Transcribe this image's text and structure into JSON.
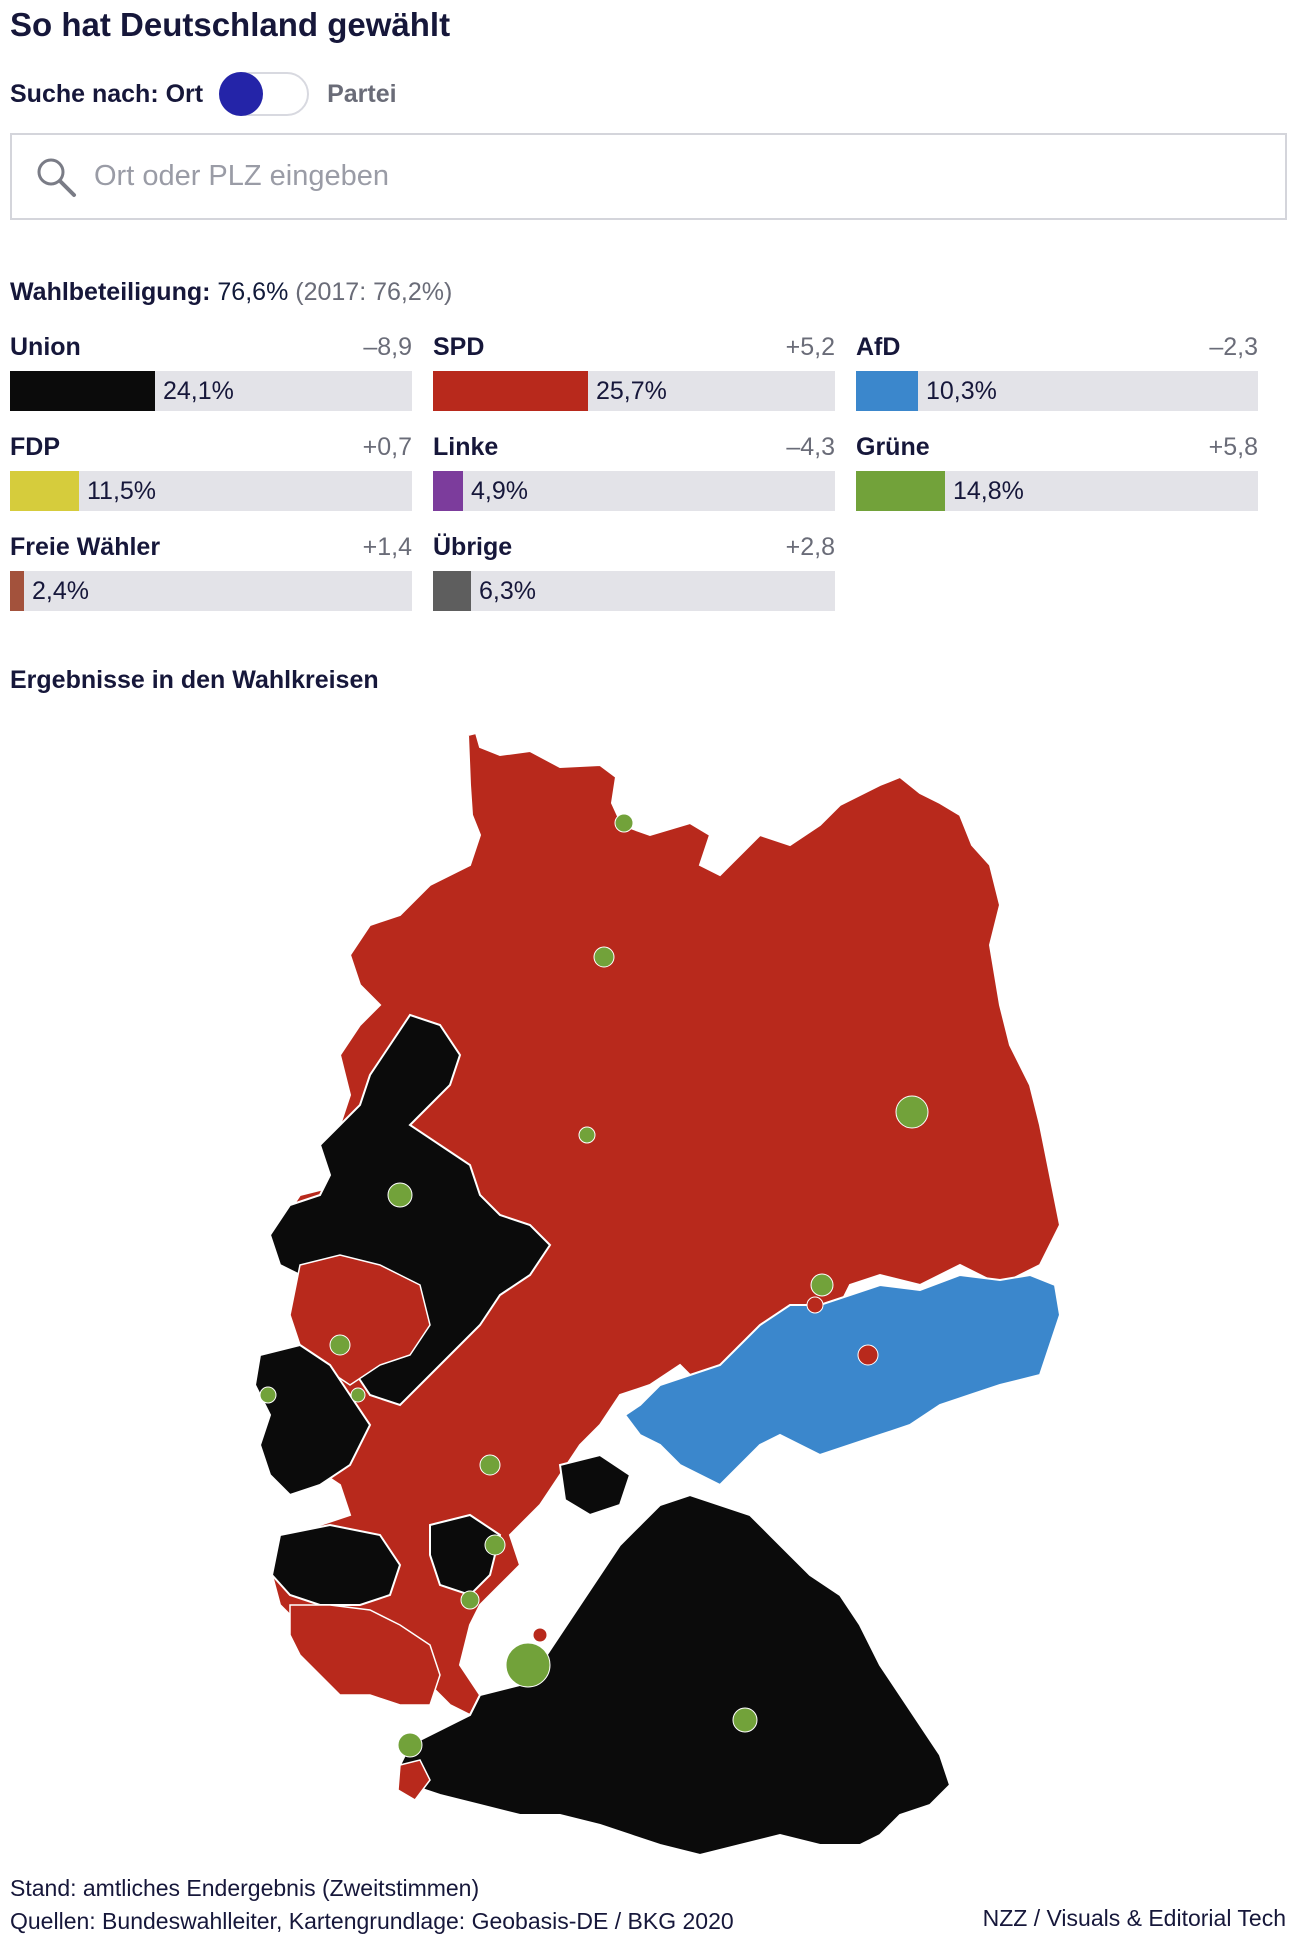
{
  "title": "So hat Deutschland gewählt",
  "toggle": {
    "label_left": "Suche nach: Ort",
    "label_right": "Partei"
  },
  "search": {
    "placeholder": "Ort oder PLZ eingeben"
  },
  "turnout": {
    "label": "Wahlbeteiligung:",
    "value": "76,6%",
    "previous": "(2017: 76,2%)"
  },
  "parties": [
    {
      "name": "Union",
      "change": "–8,9",
      "pct_label": "24,1%",
      "pct": 24.1,
      "color": "#0b0b0b"
    },
    {
      "name": "SPD",
      "change": "+5,2",
      "pct_label": "25,7%",
      "pct": 25.7,
      "color": "#b8291c"
    },
    {
      "name": "AfD",
      "change": "–2,3",
      "pct_label": "10,3%",
      "pct": 10.3,
      "color": "#3b87cc"
    },
    {
      "name": "FDP",
      "change": "+0,7",
      "pct_label": "11,5%",
      "pct": 11.5,
      "color": "#d6cc3c"
    },
    {
      "name": "Linke",
      "change": "–4,3",
      "pct_label": "4,9%",
      "pct": 4.9,
      "color": "#7c3c9c"
    },
    {
      "name": "Grüne",
      "change": "+5,8",
      "pct_label": "14,8%",
      "pct": 14.8,
      "color": "#72a23a"
    },
    {
      "name": "Freie Wähler",
      "change": "+1,4",
      "pct_label": "2,4%",
      "pct": 2.4,
      "color": "#a3523c"
    },
    {
      "name": "Übrige",
      "change": "+2,8",
      "pct_label": "6,3%",
      "pct": 6.3,
      "color": "#5e5e5e"
    }
  ],
  "map": {
    "heading": "Ergebnisse in den Wahlkreisen",
    "colors": {
      "union": "#0b0b0b",
      "spd": "#b8291c",
      "afd": "#3b87cc",
      "gruene": "#72a23a",
      "border": "#ffffff"
    }
  },
  "footer": {
    "status": "Stand: amtliches Endergebnis (Zweitstimmen)",
    "sources": "Quellen: Bundeswahlleiter, Kartengrundlage: Geobasis-DE / BKG 2020",
    "credit": "NZZ / Visuals & Editorial Tech"
  }
}
